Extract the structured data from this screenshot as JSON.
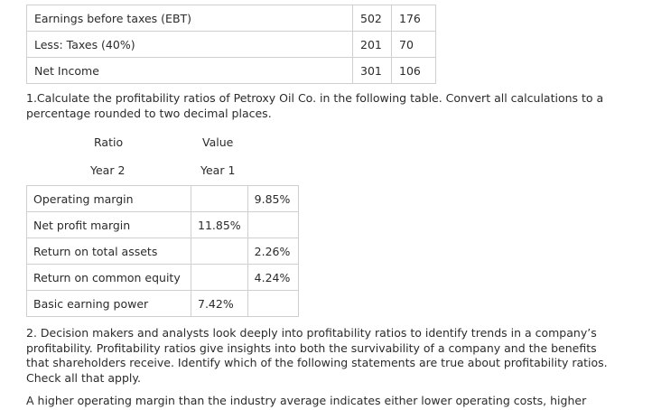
{
  "income_statement": {
    "rows": [
      {
        "label": "Earnings before taxes (EBT)",
        "year2": "502",
        "year1": "176"
      },
      {
        "label": "Less: Taxes (40%)",
        "year2": "201",
        "year1": "70"
      },
      {
        "label": "Net Income",
        "year2": "301",
        "year1": "106"
      }
    ]
  },
  "question1": {
    "text": "1.Calculate the profitability ratios of Petroxy Oil Co. in the following table. Convert all calculations to a percentage rounded to two decimal places."
  },
  "ratios_table": {
    "header_ratio": "Ratio",
    "header_value": "Value",
    "header_year2": "Year 2",
    "header_year1": "Year 1",
    "rows": [
      {
        "label": "Operating margin",
        "year2": "",
        "year1": "9.85%"
      },
      {
        "label": "Net profit margin",
        "year2": "11.85%",
        "year1": ""
      },
      {
        "label": "Return on total assets",
        "year2": "",
        "year1": "2.26%"
      },
      {
        "label": "Return on common equity",
        "year2": "",
        "year1": "4.24%"
      },
      {
        "label": "Basic earning power",
        "year2": "7.42%",
        "year1": ""
      }
    ]
  },
  "question2": {
    "text": "2. Decision makers and analysts look deeply into profitability ratios to identify trends in a company’s profitability. Profitability ratios give insights into both the survivability of a company and the benefits that shareholders receive. Identify which of the following statements are true about profitability ratios. Check all that apply."
  },
  "statement1": {
    "text": "A higher operating margin than the industry average indicates either lower operating costs, higher"
  }
}
